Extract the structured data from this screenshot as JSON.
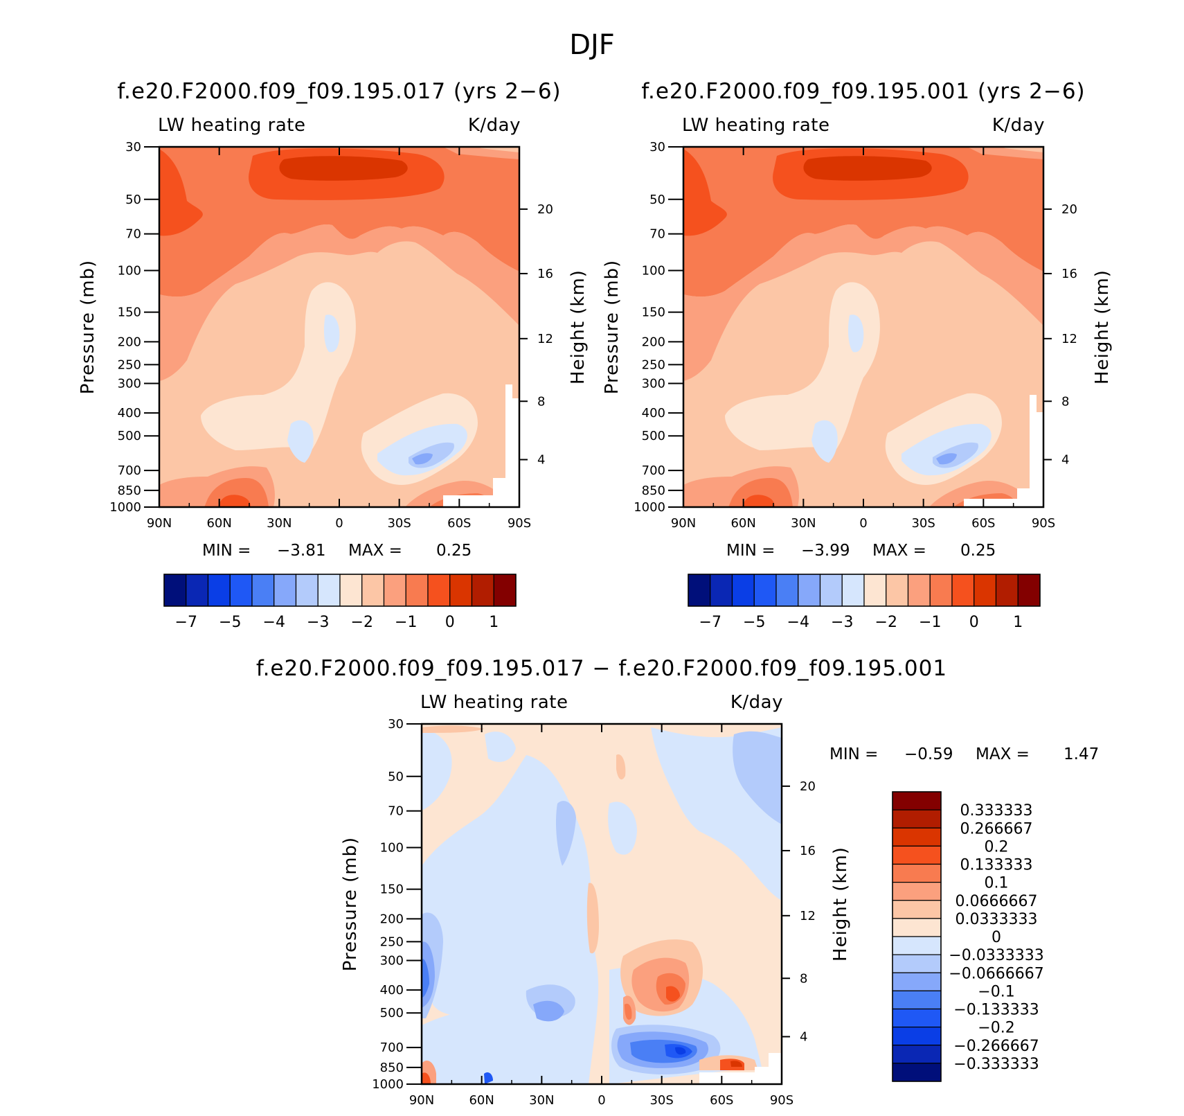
{
  "figure": {
    "title": "DJF",
    "min_label": "MIN =",
    "max_label": "MAX ="
  },
  "panels": [
    {
      "title": "f.e20.F2000.f09_f09.195.017 (yrs 2−6)",
      "left_label": "LW heating rate",
      "right_label": "K/day",
      "min_value": "−3.81",
      "max_value": "0.25"
    },
    {
      "title": "f.e20.F2000.f09_f09.195.001 (yrs 2−6)",
      "left_label": "LW heating rate",
      "right_label": "K/day",
      "min_value": "−3.99",
      "max_value": "0.25"
    },
    {
      "title": "f.e20.F2000.f09_f09.195.017 − f.e20.F2000.f09_f09.195.001",
      "left_label": "LW heating rate",
      "right_label": "K/day",
      "min_value": "−0.59",
      "max_value": "1.47"
    }
  ],
  "axes": {
    "pressure_label": "Pressure (mb)",
    "height_label": "Height (km)",
    "pressure_ticks": [
      "30",
      "50",
      "70",
      "100",
      "150",
      "200",
      "250",
      "300",
      "400",
      "500",
      "700",
      "850",
      "1000"
    ],
    "height_ticks": [
      "20",
      "16",
      "12",
      "8",
      "4"
    ],
    "lat_ticks": [
      "90N",
      "60N",
      "30N",
      "0",
      "30S",
      "60S",
      "90S"
    ]
  },
  "colorbar_top": {
    "labels": [
      "−7",
      "−5",
      "−4",
      "−3",
      "−2",
      "−1",
      "0",
      "1"
    ],
    "colors": [
      "#000f7a",
      "#0a27b4",
      "#0a3ee6",
      "#1f58f5",
      "#4a7ff5",
      "#86a8fa",
      "#b3cbfb",
      "#d6e6fd",
      "#fde5d2",
      "#fcc6a6",
      "#fba07e",
      "#f87b50",
      "#f5511e",
      "#da3500",
      "#b11d00",
      "#830000"
    ]
  },
  "colorbar_diff": {
    "labels": [
      "0.333333",
      "0.266667",
      "0.2",
      "0.133333",
      "0.1",
      "0.0666667",
      "0.0333333",
      "0",
      "−0.0333333",
      "−0.0666667",
      "−0.1",
      "−0.133333",
      "−0.2",
      "−0.266667",
      "−0.333333"
    ],
    "colors": [
      "#830000",
      "#b11d00",
      "#da3500",
      "#f5511e",
      "#f87b50",
      "#fba07e",
      "#fcc6a6",
      "#fde5d2",
      "#d6e6fd",
      "#b3cbfb",
      "#86a8fa",
      "#4a7ff5",
      "#1f58f5",
      "#0a3ee6",
      "#0a27b4",
      "#000f7a"
    ]
  },
  "chart_data": [
    {
      "type": "heatmap",
      "title": "f.e20.F2000.f09_f09.195.017 (yrs 2−6)",
      "variable": "LW heating rate",
      "units": "K/day",
      "x": [
        "90N",
        "60N",
        "30N",
        "0",
        "30S",
        "60S",
        "90S"
      ],
      "y": [
        30,
        50,
        70,
        100,
        150,
        200,
        250,
        300,
        400,
        500,
        700,
        850,
        1000
      ],
      "ylabel": "Pressure (mb)",
      "y2label": "Height (km)",
      "min": -3.81,
      "max": 0.25,
      "levels": [
        -7,
        -6,
        -5,
        -4.5,
        -4,
        -3.5,
        -3,
        -2.5,
        -2,
        -1.5,
        -1,
        -0.5,
        0,
        0.5,
        1
      ]
    },
    {
      "type": "heatmap",
      "title": "f.e20.F2000.f09_f09.195.001 (yrs 2−6)",
      "variable": "LW heating rate",
      "units": "K/day",
      "x": [
        "90N",
        "60N",
        "30N",
        "0",
        "30S",
        "60S",
        "90S"
      ],
      "y": [
        30,
        50,
        70,
        100,
        150,
        200,
        250,
        300,
        400,
        500,
        700,
        850,
        1000
      ],
      "ylabel": "Pressure (mb)",
      "y2label": "Height (km)",
      "min": -3.99,
      "max": 0.25,
      "levels": [
        -7,
        -6,
        -5,
        -4.5,
        -4,
        -3.5,
        -3,
        -2.5,
        -2,
        -1.5,
        -1,
        -0.5,
        0,
        0.5,
        1
      ]
    },
    {
      "type": "heatmap",
      "title": "f.e20.F2000.f09_f09.195.017 − f.e20.F2000.f09_f09.195.001",
      "variable": "LW heating rate",
      "units": "K/day",
      "x": [
        "90N",
        "60N",
        "30N",
        "0",
        "30S",
        "60S",
        "90S"
      ],
      "y": [
        30,
        50,
        70,
        100,
        150,
        200,
        250,
        300,
        400,
        500,
        700,
        850,
        1000
      ],
      "ylabel": "Pressure (mb)",
      "y2label": "Height (km)",
      "min": -0.59,
      "max": 1.47,
      "levels": [
        -0.333333,
        -0.266667,
        -0.2,
        -0.133333,
        -0.1,
        -0.0666667,
        -0.0333333,
        0,
        0.0333333,
        0.0666667,
        0.1,
        0.133333,
        0.2,
        0.266667,
        0.333333
      ]
    }
  ]
}
